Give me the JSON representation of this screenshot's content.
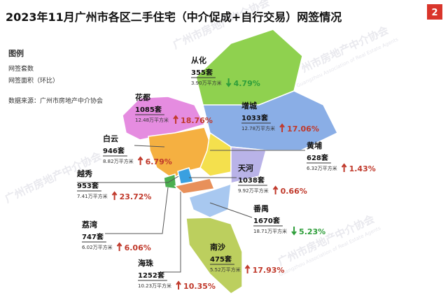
{
  "header": {
    "title": "2023年11月广州市各区二手住宅（中介促成+自行交易）网签情况",
    "badge": "2"
  },
  "legend": {
    "heading": "图例",
    "units": "网签套数",
    "area": "网签面积（环比）",
    "source": "数据来源：广州市房地产中介协会"
  },
  "watermark": {
    "cn": "广州市房地产中介协会",
    "en": "Guangzhou Association of Real Estate Agents"
  },
  "districts": [
    {
      "name": "从化",
      "units": "355套",
      "area": "3.90万平方米",
      "change": "4.79%",
      "arrow": "down",
      "color": "#2e9e3a"
    },
    {
      "name": "花都",
      "units": "1085套",
      "area": "12.48万平方米",
      "change": "18.76%",
      "arrow": "up",
      "color": "#c0392b"
    },
    {
      "name": "增城",
      "units": "1033套",
      "area": "12.78万平方米",
      "change": "17.06%",
      "arrow": "up",
      "color": "#c0392b"
    },
    {
      "name": "白云",
      "units": "946套",
      "area": "8.82万平方米",
      "change": "6.79%",
      "arrow": "up",
      "color": "#c0392b"
    },
    {
      "name": "黄埔",
      "units": "628套",
      "area": "6.32万平方米",
      "change": "1.43%",
      "arrow": "up",
      "color": "#c0392b"
    },
    {
      "name": "天河",
      "units": "1038套",
      "area": "9.92万平方米",
      "change": "0.66%",
      "arrow": "up",
      "color": "#c0392b"
    },
    {
      "name": "越秀",
      "units": "953套",
      "area": "7.41万平方米",
      "change": "23.72%",
      "arrow": "up",
      "color": "#c0392b"
    },
    {
      "name": "番禺",
      "units": "1670套",
      "area": "18.71万平方米",
      "change": "5.23%",
      "arrow": "down",
      "color": "#2e9e3a"
    },
    {
      "name": "荔湾",
      "units": "747套",
      "area": "6.02万平方米",
      "change": "6.06%",
      "arrow": "up",
      "color": "#c0392b"
    },
    {
      "name": "南沙",
      "units": "475套",
      "area": "5.52万平方米",
      "change": "17.93%",
      "arrow": "up",
      "color": "#c0392b"
    },
    {
      "name": "海珠",
      "units": "1252套",
      "area": "10.23万平方米",
      "change": "10.35%",
      "arrow": "up",
      "color": "#c0392b"
    }
  ]
}
